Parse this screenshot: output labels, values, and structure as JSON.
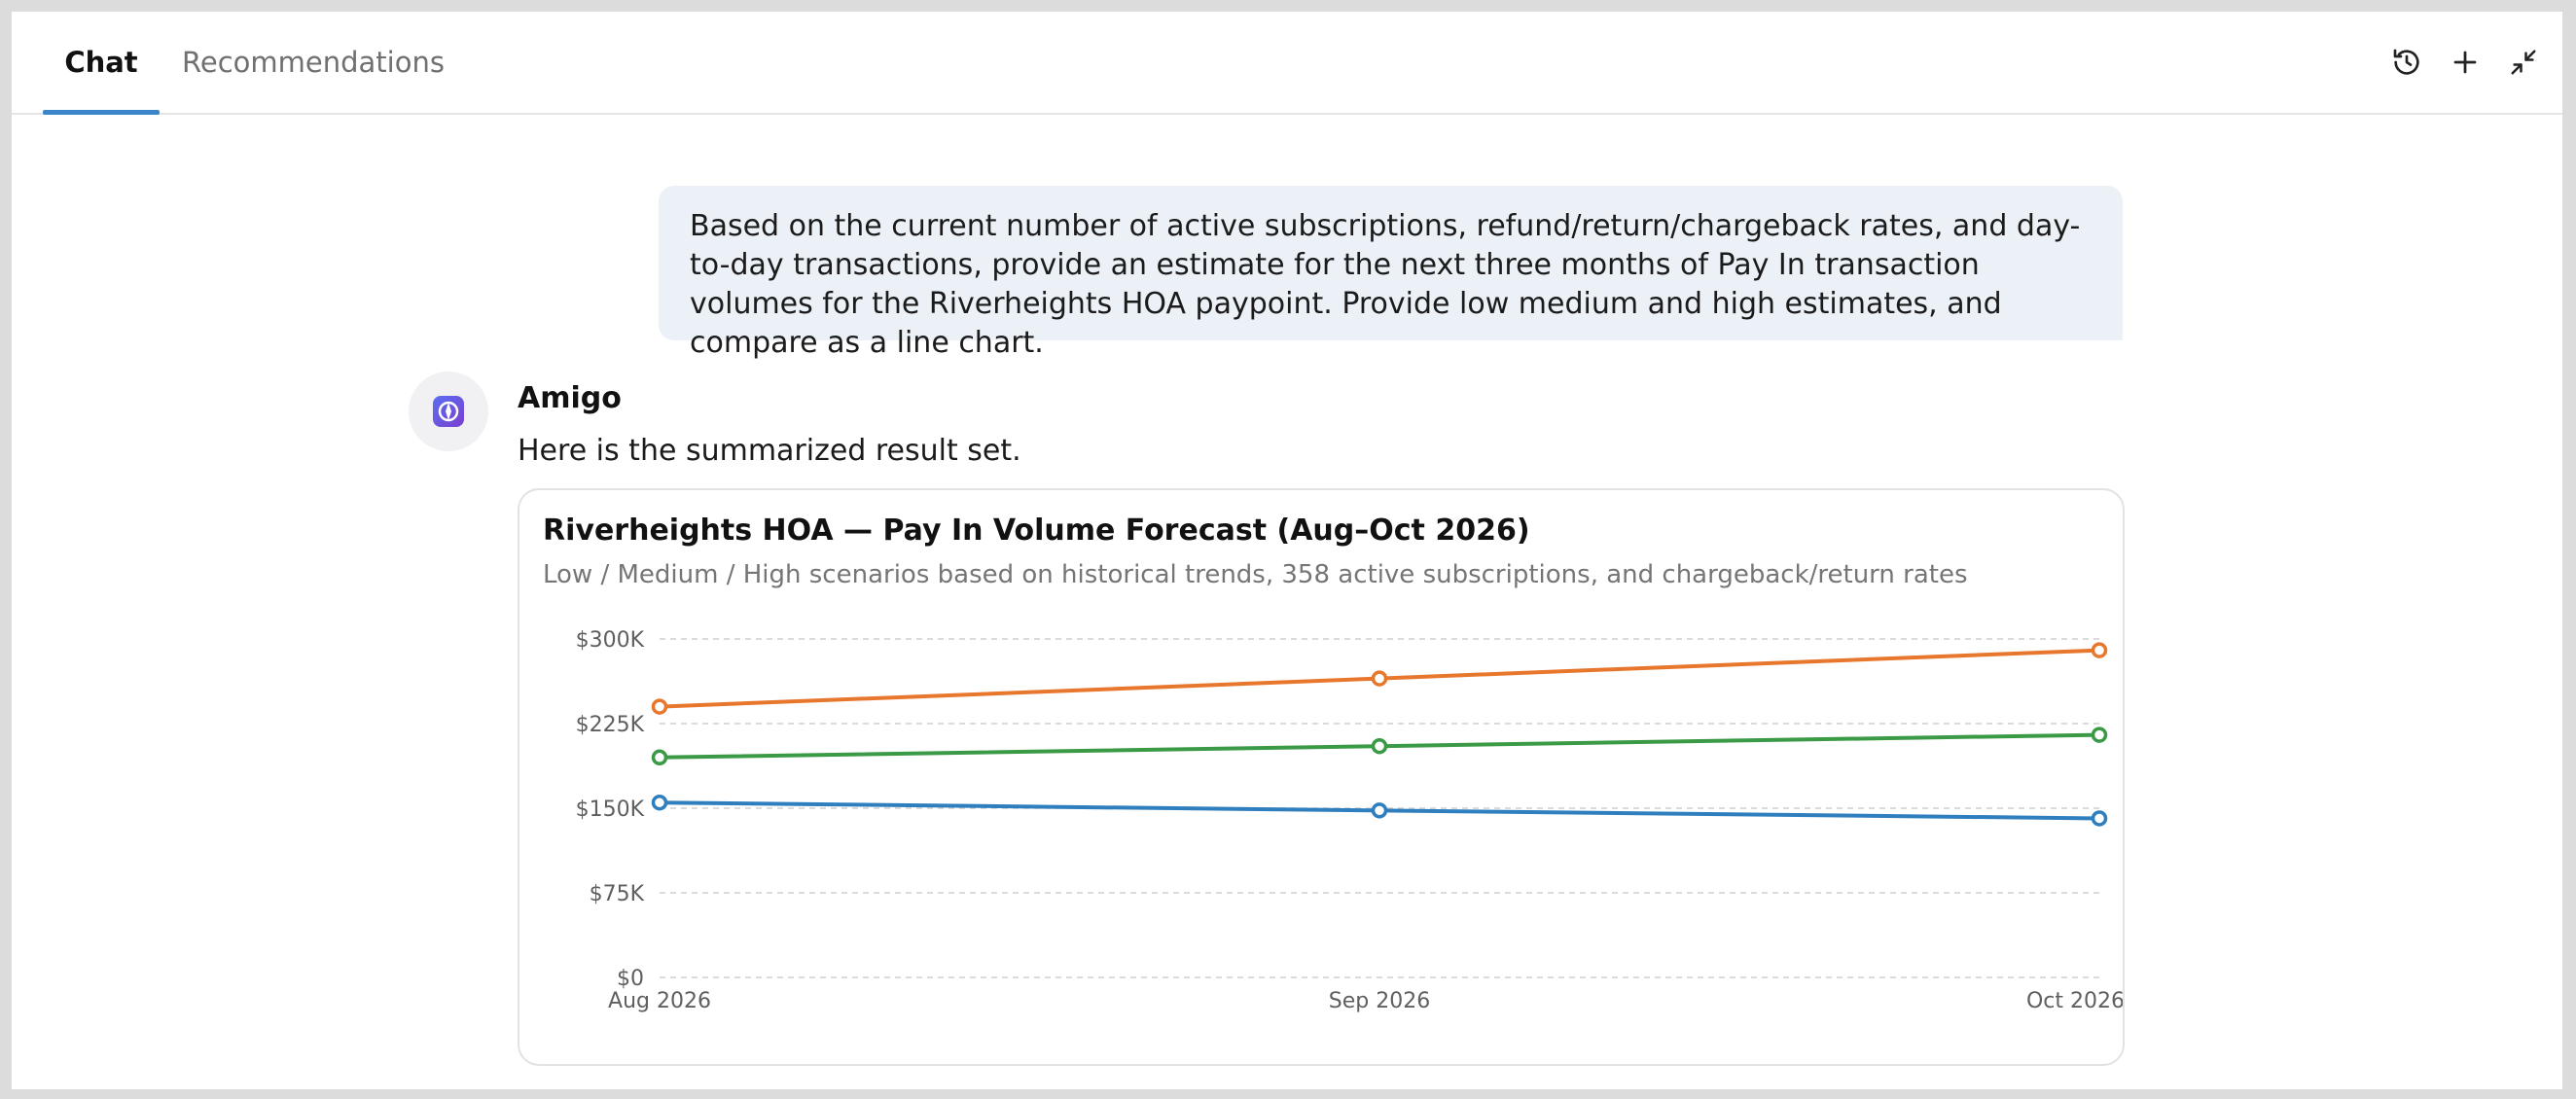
{
  "tabs": [
    {
      "label": "Chat",
      "active": true
    },
    {
      "label": "Recommendations",
      "active": false
    }
  ],
  "header_icons": [
    "history-icon",
    "plus-icon",
    "minimize-icon"
  ],
  "user_message": "Based on the current number of active subscriptions, refund/return/chargeback rates, and day-to-day transactions, provide an estimate for the next three months of Pay In transaction volumes for the Riverheights HOA paypoint. Provide low medium and high estimates, and compare as a line chart.",
  "assistant": {
    "name": "Amigo",
    "text": "Here is the summarized result set."
  },
  "chart_data": {
    "type": "line",
    "title": "Riverheights HOA — Pay In Volume Forecast (Aug–Oct 2026)",
    "subtitle": "Low / Medium / High scenarios based on historical trends, 358 active subscriptions, and chargeback/return rates",
    "categories": [
      "Aug 2026",
      "Sep 2026",
      "Oct 2026"
    ],
    "y_ticks": [
      0,
      75000,
      150000,
      225000,
      300000
    ],
    "y_tick_labels": [
      "$0",
      "$75K",
      "$150K",
      "$225K",
      "$300K"
    ],
    "ylim": [
      0,
      300000
    ],
    "grid": true,
    "series": [
      {
        "color": "#e8772e",
        "values": [
          240000,
          265000,
          290000
        ]
      },
      {
        "color": "#3a9a46",
        "values": [
          195000,
          205000,
          215000
        ]
      },
      {
        "color": "#2f7fbf",
        "values": [
          155000,
          148000,
          141000
        ]
      }
    ]
  }
}
